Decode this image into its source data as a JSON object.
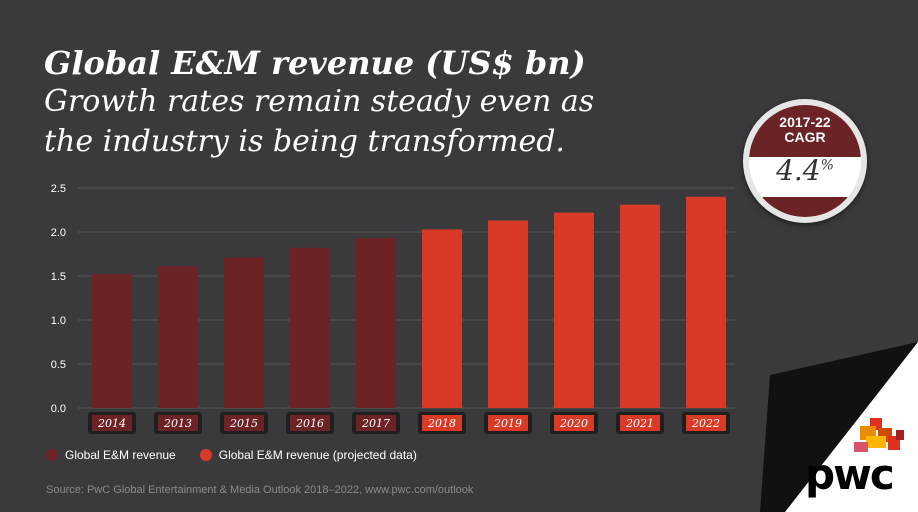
{
  "title": "Global E&M revenue (US$ bn)",
  "subtitle": "Growth rates remain steady even as\nthe industry is being transformed.",
  "badge": {
    "period": "2017-22",
    "label": "CAGR",
    "value": "4.4",
    "unit": "%"
  },
  "legend": [
    {
      "label": "Global E&M revenue",
      "color": "#6b2326"
    },
    {
      "label": "Global E&M revenue (projected data)",
      "color": "#d93a26"
    }
  ],
  "source": "Source: PwC Global Entertainment & Media Outlook 2018–2022, www.pwc.com/outlook",
  "logo_text": "pwc",
  "chart_data": {
    "type": "bar",
    "categories": [
      "2014",
      "2013",
      "2015",
      "2016",
      "2017",
      "2018",
      "2019",
      "2020",
      "2021",
      "2022"
    ],
    "series": [
      {
        "name": "Global E&M revenue",
        "values": [
          1.52,
          1.61,
          1.71,
          1.82,
          1.93,
          null,
          null,
          null,
          null,
          null
        ],
        "color": "#6b2326"
      },
      {
        "name": "Global E&M revenue (projected data)",
        "values": [
          null,
          null,
          null,
          null,
          null,
          2.03,
          2.13,
          2.22,
          2.31,
          2.4
        ],
        "color": "#d93a26"
      }
    ],
    "yticks": [
      "0.0",
      "0.5",
      "1.0",
      "1.5",
      "2.0",
      "2.5"
    ],
    "ylim": [
      0,
      2.5
    ],
    "grid": true
  }
}
